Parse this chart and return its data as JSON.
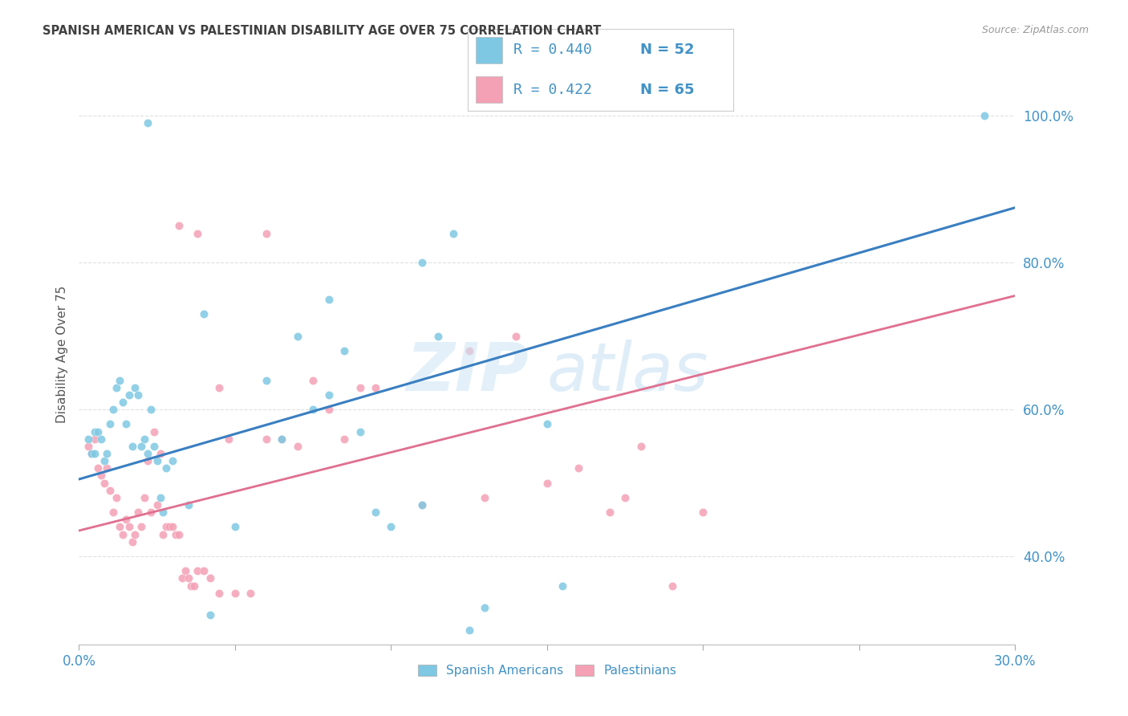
{
  "title": "SPANISH AMERICAN VS PALESTINIAN DISABILITY AGE OVER 75 CORRELATION CHART",
  "source": "Source: ZipAtlas.com",
  "ylabel": "Disability Age Over 75",
  "ytick_labels": [
    "100.0%",
    "80.0%",
    "60.0%",
    "40.0%"
  ],
  "ytick_values": [
    1.0,
    0.8,
    0.6,
    0.4
  ],
  "xmin": 0.0,
  "xmax": 0.3,
  "ymin": 0.28,
  "ymax": 1.07,
  "legend_r1": "R = 0.440",
  "legend_n1": "N = 52",
  "legend_r2": "R = 0.422",
  "legend_n2": "N = 65",
  "color_blue": "#7ec8e3",
  "color_pink": "#f4a0b5",
  "color_line_blue": "#3a7fc1",
  "color_line_pink": "#e07090",
  "color_text_blue": "#4292c6",
  "color_title": "#404040",
  "color_source": "#999999",
  "blue_scatter_x": [
    0.022,
    0.06,
    0.065,
    0.08,
    0.11,
    0.115,
    0.15,
    0.29,
    0.003,
    0.004,
    0.005,
    0.006,
    0.007,
    0.008,
    0.009,
    0.01,
    0.011,
    0.012,
    0.013,
    0.014,
    0.015,
    0.016,
    0.017,
    0.018,
    0.019,
    0.02,
    0.021,
    0.022,
    0.023,
    0.024,
    0.025,
    0.026,
    0.027,
    0.028,
    0.04,
    0.042,
    0.07,
    0.075,
    0.085,
    0.09,
    0.095,
    0.1,
    0.12,
    0.125,
    0.13,
    0.155,
    0.005,
    0.03,
    0.035,
    0.05,
    0.08,
    0.11
  ],
  "blue_scatter_y": [
    0.99,
    0.64,
    0.56,
    0.75,
    0.8,
    0.7,
    0.58,
    1.0,
    0.56,
    0.54,
    0.57,
    0.57,
    0.56,
    0.53,
    0.54,
    0.58,
    0.6,
    0.63,
    0.64,
    0.61,
    0.58,
    0.62,
    0.55,
    0.63,
    0.62,
    0.55,
    0.56,
    0.54,
    0.6,
    0.55,
    0.53,
    0.48,
    0.46,
    0.52,
    0.73,
    0.32,
    0.7,
    0.6,
    0.68,
    0.57,
    0.46,
    0.44,
    0.84,
    0.3,
    0.33,
    0.36,
    0.54,
    0.53,
    0.47,
    0.44,
    0.62,
    0.47
  ],
  "pink_scatter_x": [
    0.003,
    0.004,
    0.005,
    0.006,
    0.007,
    0.008,
    0.009,
    0.01,
    0.011,
    0.012,
    0.013,
    0.014,
    0.015,
    0.016,
    0.017,
    0.018,
    0.019,
    0.02,
    0.021,
    0.022,
    0.023,
    0.024,
    0.025,
    0.026,
    0.027,
    0.028,
    0.029,
    0.03,
    0.031,
    0.032,
    0.033,
    0.034,
    0.035,
    0.036,
    0.037,
    0.038,
    0.04,
    0.042,
    0.045,
    0.048,
    0.05,
    0.055,
    0.06,
    0.065,
    0.07,
    0.075,
    0.08,
    0.085,
    0.09,
    0.095,
    0.11,
    0.125,
    0.13,
    0.14,
    0.15,
    0.16,
    0.17,
    0.175,
    0.18,
    0.19,
    0.2,
    0.032,
    0.038,
    0.045,
    0.06
  ],
  "pink_scatter_y": [
    0.55,
    0.54,
    0.56,
    0.52,
    0.51,
    0.5,
    0.52,
    0.49,
    0.46,
    0.48,
    0.44,
    0.43,
    0.45,
    0.44,
    0.42,
    0.43,
    0.46,
    0.44,
    0.48,
    0.53,
    0.46,
    0.57,
    0.47,
    0.54,
    0.43,
    0.44,
    0.44,
    0.44,
    0.43,
    0.43,
    0.37,
    0.38,
    0.37,
    0.36,
    0.36,
    0.38,
    0.38,
    0.37,
    0.35,
    0.56,
    0.35,
    0.35,
    0.56,
    0.56,
    0.55,
    0.64,
    0.6,
    0.56,
    0.63,
    0.63,
    0.47,
    0.68,
    0.48,
    0.7,
    0.5,
    0.52,
    0.46,
    0.48,
    0.55,
    0.36,
    0.46,
    0.85,
    0.84,
    0.63,
    0.84
  ],
  "blue_line_x": [
    0.0,
    0.3
  ],
  "blue_line_y": [
    0.505,
    0.875
  ],
  "pink_line_x": [
    0.0,
    0.3
  ],
  "pink_line_y": [
    0.435,
    0.755
  ],
  "grid_color": "#e0e0e0",
  "background_color": "#ffffff"
}
